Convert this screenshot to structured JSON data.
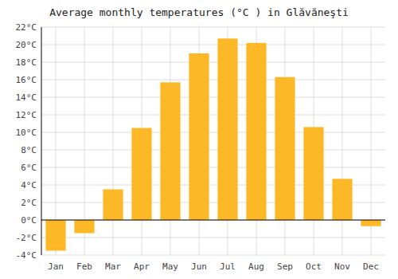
{
  "chart_data": {
    "type": "bar",
    "title": "Average monthly temperatures (°C ) in Glăvăneşti",
    "categories": [
      "Jan",
      "Feb",
      "Mar",
      "Apr",
      "May",
      "Jun",
      "Jul",
      "Aug",
      "Sep",
      "Oct",
      "Nov",
      "Dec"
    ],
    "values": [
      -3.5,
      -1.5,
      3.5,
      10.5,
      15.7,
      19.0,
      20.7,
      20.2,
      16.3,
      10.6,
      4.7,
      -0.7
    ],
    "color": "#FDB827",
    "ylim": [
      -4,
      22
    ],
    "yticks": [
      {
        "value": -4,
        "label": "-4°C"
      },
      {
        "value": -2,
        "label": "-2°C"
      },
      {
        "value": 0,
        "label": "0°C"
      },
      {
        "value": 2,
        "label": "2°C"
      },
      {
        "value": 4,
        "label": "4°C"
      },
      {
        "value": 6,
        "label": "6°C"
      },
      {
        "value": 8,
        "label": "8°C"
      },
      {
        "value": 10,
        "label": "10°C"
      },
      {
        "value": 12,
        "label": "12°C"
      },
      {
        "value": 14,
        "label": "14°C"
      },
      {
        "value": 16,
        "label": "16°C"
      },
      {
        "value": 18,
        "label": "18°C"
      },
      {
        "value": 20,
        "label": "20°C"
      },
      {
        "value": 22,
        "label": "22°C"
      }
    ],
    "grid": true
  }
}
